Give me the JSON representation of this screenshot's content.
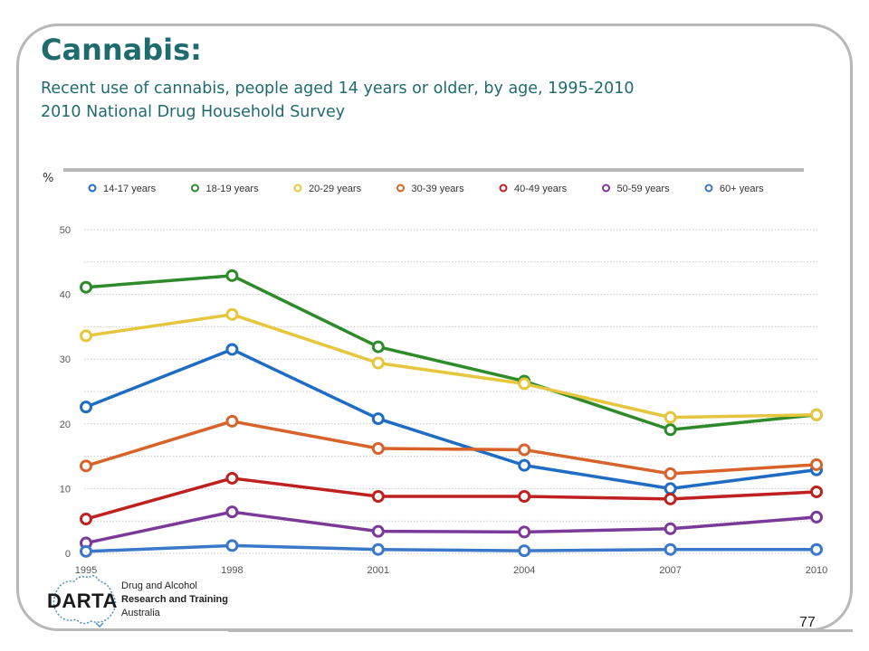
{
  "slide": {
    "title": "Cannabis:",
    "subtitle_line1": "Recent use of cannabis, people aged 14 years or older, by age, 1995-2010",
    "subtitle_line2": "2010 National Drug Household Survey",
    "page_number": "77"
  },
  "logo": {
    "name": "DARTA",
    "line1": "Drug and Alcohol",
    "line2": "Research and Training",
    "line3": "Australia",
    "icon": "australia-map-icon"
  },
  "chart_data": {
    "type": "line",
    "ylabel": "%",
    "ylim": [
      0,
      50
    ],
    "yticks": [
      0,
      10,
      20,
      30,
      40,
      50
    ],
    "x": [
      "1995",
      "1998",
      "2001",
      "2004",
      "2007",
      "2010"
    ],
    "grid": true,
    "legend_position": "top",
    "series": [
      {
        "name": "14-17 years",
        "color": "#1f6cc4",
        "values": [
          22.6,
          31.5,
          20.8,
          13.6,
          10.0,
          12.9
        ]
      },
      {
        "name": "18-19 years",
        "color": "#2e8b2a",
        "values": [
          41.1,
          42.9,
          31.9,
          26.6,
          19.1,
          21.4
        ]
      },
      {
        "name": "20-29 years",
        "color": "#e6c63c",
        "values": [
          33.6,
          36.9,
          29.4,
          26.2,
          21.0,
          21.4
        ]
      },
      {
        "name": "30-39 years",
        "color": "#d8632a",
        "values": [
          13.5,
          20.4,
          16.2,
          16.0,
          12.3,
          13.7
        ]
      },
      {
        "name": "40-49 years",
        "color": "#bf2020",
        "values": [
          5.3,
          11.6,
          8.8,
          8.8,
          8.4,
          9.5
        ]
      },
      {
        "name": "50-59 years",
        "color": "#7b3a9a",
        "values": [
          1.6,
          6.4,
          3.4,
          3.3,
          3.8,
          5.6
        ]
      },
      {
        "name": "60+ years",
        "color": "#3b78c9",
        "values": [
          0.3,
          1.2,
          0.6,
          0.4,
          0.6,
          0.6
        ]
      }
    ]
  }
}
